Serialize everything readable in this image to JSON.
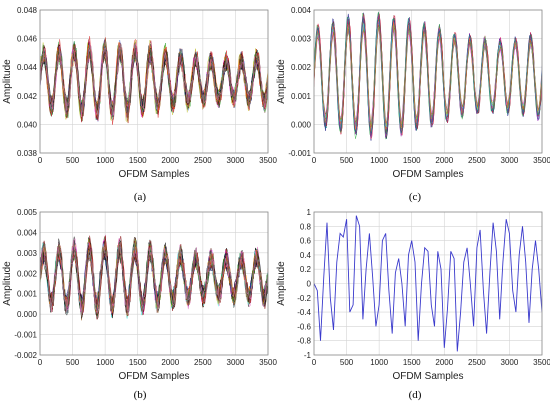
{
  "chart_data": [
    {
      "id": "a",
      "type": "line",
      "caption": "(a)",
      "xlabel": "OFDM Samples",
      "ylabel": "Amplitude",
      "xlim": [
        0,
        3500
      ],
      "ylim": [
        0.038,
        0.048
      ],
      "xticks": [
        "0",
        "500",
        "1000",
        "1500",
        "2000",
        "2500",
        "3000",
        "3500"
      ],
      "yticks": [
        "0.038",
        "0.040",
        "0.042",
        "0.044",
        "0.046",
        "0.048"
      ],
      "grid": true,
      "series_count": 40,
      "periods": 15,
      "center": 0.0431,
      "swing": 0.0018,
      "spread": 0.0012
    },
    {
      "id": "b",
      "type": "line",
      "caption": "(b)",
      "xlabel": "OFDM Samples",
      "ylabel": "Amplitude",
      "xlim": [
        0,
        3500
      ],
      "ylim": [
        -0.002,
        0.005
      ],
      "xticks": [
        "0",
        "500",
        "1000",
        "1500",
        "2000",
        "2500",
        "3000",
        "3500"
      ],
      "yticks": [
        "-0.002",
        "-0.001",
        "0.000",
        "0.001",
        "0.002",
        "0.003",
        "0.004",
        "0.005"
      ],
      "grid": true,
      "series_count": 40,
      "periods": 15,
      "center": 0.0018,
      "swing": 0.0012,
      "spread": 0.0009
    },
    {
      "id": "c",
      "type": "line",
      "caption": "(c)",
      "xlabel": "OFDM Samples",
      "ylabel": "Amplitude",
      "xlim": [
        0,
        3500
      ],
      "ylim": [
        -0.001,
        0.004
      ],
      "xticks": [
        "0",
        "500",
        "1000",
        "1500",
        "2000",
        "2500",
        "3000",
        "3500"
      ],
      "yticks": [
        "-0.001",
        "0.000",
        "0.001",
        "0.002",
        "0.003",
        "0.004"
      ],
      "grid": true,
      "series_count": 30,
      "periods": 15,
      "center": 0.0017,
      "swing": 0.0015,
      "spread": 0.00025
    },
    {
      "id": "d",
      "type": "line",
      "caption": "(d)",
      "xlabel": "OFDM Samples",
      "ylabel": "Amplitude",
      "xlim": [
        0,
        3500
      ],
      "ylim": [
        -1,
        1
      ],
      "xticks": [
        "0",
        "500",
        "1000",
        "1500",
        "2000",
        "2500",
        "3000",
        "3500"
      ],
      "yticks": [
        "-1",
        "-0.8",
        "-0.6",
        "-0.4",
        "-0.2",
        "0",
        "0.2",
        "0.4",
        "0.6",
        "0.8",
        "1"
      ],
      "grid": true,
      "series_count": 1,
      "color": "#3a3acc",
      "x": [
        0,
        50,
        100,
        150,
        200,
        250,
        300,
        350,
        400,
        450,
        500,
        550,
        600,
        650,
        700,
        750,
        800,
        850,
        900,
        950,
        1000,
        1050,
        1100,
        1150,
        1200,
        1250,
        1300,
        1350,
        1400,
        1450,
        1500,
        1550,
        1600,
        1650,
        1700,
        1750,
        1800,
        1850,
        1900,
        1950,
        2000,
        2050,
        2100,
        2150,
        2200,
        2250,
        2300,
        2350,
        2400,
        2450,
        2500,
        2550,
        2600,
        2650,
        2700,
        2750,
        2800,
        2850,
        2900,
        2950,
        3000,
        3050,
        3100,
        3150,
        3200,
        3250,
        3300,
        3350,
        3400,
        3450,
        3500
      ],
      "y": [
        0.0,
        -0.1,
        -0.8,
        0.1,
        0.85,
        -0.2,
        -0.65,
        0.3,
        0.7,
        0.65,
        0.9,
        -0.4,
        -0.3,
        0.95,
        0.8,
        -0.5,
        0.2,
        0.7,
        0.1,
        -0.6,
        -0.3,
        0.6,
        0.7,
        -0.1,
        -0.7,
        0.15,
        0.35,
        0.0,
        -0.6,
        0.4,
        0.6,
        0.3,
        -0.8,
        0.0,
        0.5,
        0.45,
        -0.3,
        -0.6,
        0.45,
        0.2,
        -0.9,
        -0.35,
        0.45,
        0.35,
        -0.95,
        -0.4,
        0.3,
        0.5,
        0.0,
        -0.6,
        0.5,
        0.75,
        -0.1,
        -0.7,
        0.15,
        0.85,
        0.45,
        -0.5,
        0.3,
        0.9,
        0.7,
        -0.1,
        -0.4,
        0.4,
        0.8,
        0.3,
        -0.55,
        0.2,
        0.6,
        0.2,
        -0.4
      ]
    }
  ]
}
